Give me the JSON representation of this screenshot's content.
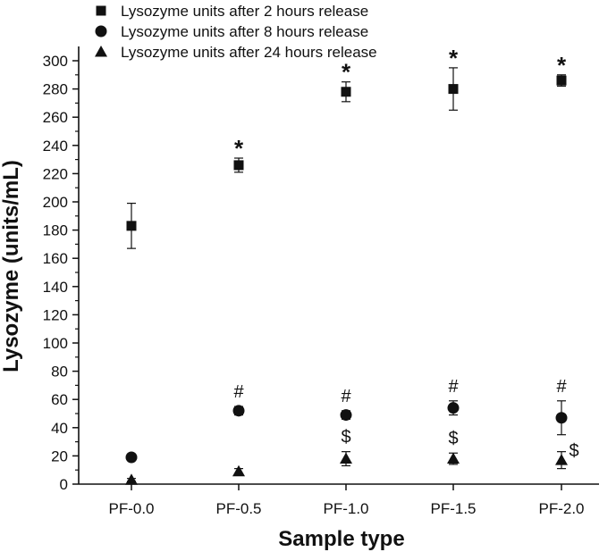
{
  "chart_data": {
    "type": "scatter",
    "title": "",
    "xlabel": "Sample type",
    "ylabel": "Lysozyme (units/mL)",
    "categories": [
      "PF-0.0",
      "PF-0.5",
      "PF-1.0",
      "PF-1.5",
      "PF-2.0"
    ],
    "ylim": [
      0,
      310
    ],
    "yticks": [
      0,
      20,
      40,
      60,
      80,
      100,
      120,
      140,
      160,
      180,
      200,
      220,
      240,
      260,
      280,
      300
    ],
    "grid": false,
    "legend_position": "top-left",
    "series": [
      {
        "name": "Lysozyme units after 2 hours release",
        "marker": "square",
        "values": [
          183,
          226,
          278,
          280,
          286
        ],
        "errors": [
          16,
          5,
          7,
          15,
          4
        ],
        "annotations": [
          "",
          "*",
          "*",
          "*",
          "*"
        ]
      },
      {
        "name": "Lysozyme units after 8 hours release",
        "marker": "circle",
        "values": [
          19,
          52,
          49,
          54,
          47
        ],
        "errors": [
          1,
          3,
          3,
          5,
          12
        ],
        "annotations": [
          "",
          "#",
          "#",
          "#",
          "#"
        ]
      },
      {
        "name": "Lysozyme units after 24 hours release",
        "marker": "triangle",
        "values": [
          3,
          9,
          18,
          18,
          17
        ],
        "errors": [
          1,
          2,
          5,
          4,
          6
        ],
        "annotations": [
          "",
          "",
          "$",
          "$",
          "$"
        ]
      }
    ]
  }
}
